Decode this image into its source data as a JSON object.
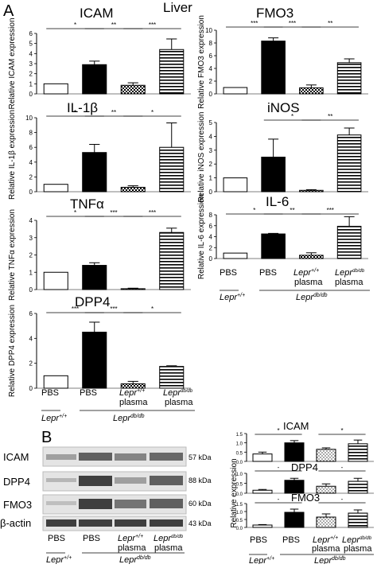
{
  "figure": {
    "panel_a_letter": "A",
    "panel_b_letter": "B",
    "tissue_title": "Liver"
  },
  "chart_data": [
    {
      "id": "icam",
      "type": "bar",
      "title": "ICAM",
      "ylabel": "Relative ICAM expression",
      "categories": [
        "PBS Lepr+/+",
        "PBS Lepr db/db",
        "Lepr+/+ plasma",
        "Lepr db/db plasma"
      ],
      "values": [
        1.0,
        2.9,
        0.85,
        4.4
      ],
      "errors": [
        0,
        0.35,
        0.25,
        1.05
      ],
      "ylim": [
        0,
        6
      ],
      "yticks": [
        "0",
        "1",
        "2",
        "3",
        "4",
        "5",
        "6"
      ],
      "sig": [
        "*",
        "**",
        "***"
      ]
    },
    {
      "id": "fmo3",
      "type": "bar",
      "title": "FMO3",
      "ylabel": "Relative FMO3 expression",
      "categories": [
        "PBS Lepr+/+",
        "PBS Lepr db/db",
        "Lepr+/+ plasma",
        "Lepr db/db plasma"
      ],
      "values": [
        1.0,
        8.3,
        0.95,
        4.9
      ],
      "errors": [
        0,
        0.5,
        0.45,
        0.6
      ],
      "ylim": [
        0,
        10
      ],
      "yticks": [
        "0",
        "2",
        "4",
        "6",
        "8",
        "10"
      ],
      "sig": [
        "***",
        "***",
        "**"
      ]
    },
    {
      "id": "il1b",
      "type": "bar",
      "title": "IL-1β",
      "ylabel": "Relative IL-1β expression",
      "categories": [
        "PBS Lepr+/+",
        "PBS Lepr db/db",
        "Lepr+/+ plasma",
        "Lepr db/db plasma"
      ],
      "values": [
        1.0,
        5.3,
        0.6,
        6.0
      ],
      "errors": [
        0,
        1.1,
        0.2,
        3.3
      ],
      "ylim": [
        0,
        10
      ],
      "yticks": [
        "0",
        "2",
        "4",
        "6",
        "8",
        "10"
      ],
      "sig": [
        "*",
        "**",
        "*"
      ]
    },
    {
      "id": "inos",
      "type": "bar",
      "title": "iNOS",
      "ylabel": "Relative iNOS expression",
      "categories": [
        "PBS Lepr+/+",
        "PBS Lepr db/db",
        "Lepr+/+ plasma",
        "Lepr db/db plasma"
      ],
      "values": [
        1.0,
        2.5,
        0.1,
        4.1
      ],
      "errors": [
        0,
        1.3,
        0.05,
        0.5
      ],
      "ylim": [
        0,
        5
      ],
      "yticks": [
        "0",
        "1",
        "2",
        "3",
        "4",
        "5"
      ],
      "sig": [
        "*",
        "**"
      ]
    },
    {
      "id": "tnfa",
      "type": "bar",
      "title": "TNFα",
      "ylabel": "Relative TNFα expression",
      "categories": [
        "PBS Lepr+/+",
        "PBS Lepr db/db",
        "Lepr+/+ plasma",
        "Lepr db/db plasma"
      ],
      "values": [
        1.0,
        1.4,
        0.05,
        3.3
      ],
      "errors": [
        0,
        0.15,
        0.03,
        0.25
      ],
      "ylim": [
        0,
        4
      ],
      "yticks": [
        "0",
        "1",
        "2",
        "3",
        "4"
      ],
      "sig": [
        "*",
        "***",
        "***"
      ]
    },
    {
      "id": "il6",
      "type": "bar",
      "title": "IL-6",
      "ylabel": "Relative IL-6 expression",
      "categories": [
        "PBS Lepr+/+",
        "PBS Lepr db/db",
        "Lepr+/+ plasma",
        "Lepr db/db plasma"
      ],
      "values": [
        1.0,
        4.5,
        0.6,
        5.9
      ],
      "errors": [
        0,
        0.1,
        0.45,
        1.75
      ],
      "ylim": [
        0,
        8
      ],
      "yticks": [
        "0",
        "2",
        "4",
        "6",
        "8"
      ],
      "sig": [
        "*",
        "**",
        "***"
      ]
    },
    {
      "id": "dpp4",
      "type": "bar",
      "title": "DPP4",
      "ylabel": "Relative DPP4 expression",
      "categories": [
        "PBS Lepr+/+",
        "PBS Lepr db/db",
        "Lepr+/+ plasma",
        "Lepr db/db plasma"
      ],
      "values": [
        1.0,
        4.5,
        0.35,
        1.75
      ],
      "errors": [
        0,
        0.8,
        0.2,
        0.05
      ],
      "ylim": [
        0,
        6
      ],
      "yticks": [
        "0",
        "2",
        "4",
        "6"
      ],
      "sig": [
        "***",
        "***",
        "*"
      ]
    },
    {
      "id": "wb_icam",
      "type": "bar",
      "title": "ICAM",
      "ylabel": "",
      "categories": [
        "PBS Lepr+/+",
        "PBS Lepr db/db",
        "Lepr+/+ plasma",
        "Lepr db/db plasma"
      ],
      "values": [
        0.4,
        1.0,
        0.65,
        0.95
      ],
      "errors": [
        0.1,
        0.12,
        0.08,
        0.2
      ],
      "ylim": [
        0,
        1.5
      ],
      "yticks": [
        "0.0",
        "0.5",
        "1.0",
        "1.5"
      ],
      "sig": [
        "*",
        "*"
      ]
    },
    {
      "id": "wb_dpp4",
      "type": "bar",
      "title": "DPP4",
      "ylabel": "",
      "categories": [
        "PBS Lepr+/+",
        "PBS Lepr db/db",
        "Lepr+/+ plasma",
        "Lepr db/db plasma"
      ],
      "values": [
        0.15,
        0.65,
        0.35,
        0.6
      ],
      "errors": [
        0.04,
        0.1,
        0.12,
        0.15
      ],
      "ylim": [
        0,
        1.0
      ],
      "yticks": [
        "0.0",
        "0.5",
        "1.0"
      ],
      "sig": [
        "-",
        "-"
      ]
    },
    {
      "id": "wb_fmo3",
      "type": "bar",
      "title": "FMO3",
      "ylabel": "",
      "categories": [
        "PBS Lepr+/+",
        "PBS Lepr db/db",
        "Lepr+/+ plasma",
        "Lepr db/db plasma"
      ],
      "values": [
        0.15,
        0.95,
        0.65,
        0.9
      ],
      "errors": [
        0.03,
        0.2,
        0.2,
        0.2
      ],
      "ylim": [
        0,
        1.5
      ],
      "yticks": [
        "0.0",
        "0.5",
        "1.0",
        "1.5"
      ],
      "sig": [
        "-",
        "-"
      ]
    }
  ],
  "shared_y_label_b": "Relative expression",
  "x_groups": {
    "pbs1": "PBS",
    "pbs2": "PBS",
    "lepr_wt": "Lepr",
    "lepr_wt_sup": "+/+",
    "lepr_db": "Lepr",
    "lepr_db_sup": "db/db",
    "plasma": "plasma",
    "group_wt": "Lepr",
    "group_wt_sup": "+/+",
    "group_db": "Lepr",
    "group_db_sup": "db/db"
  },
  "western_blot": {
    "rows": [
      {
        "label": "ICAM",
        "kda": "57 kDa"
      },
      {
        "label": "DPP4",
        "kda": "88 kDa"
      },
      {
        "label": "FMO3",
        "kda": "60 kDa"
      },
      {
        "label": "β-actin",
        "kda": "43 kDa"
      }
    ]
  },
  "colors": {
    "black": "#000000",
    "white": "#ffffff",
    "axis": "#000000"
  }
}
